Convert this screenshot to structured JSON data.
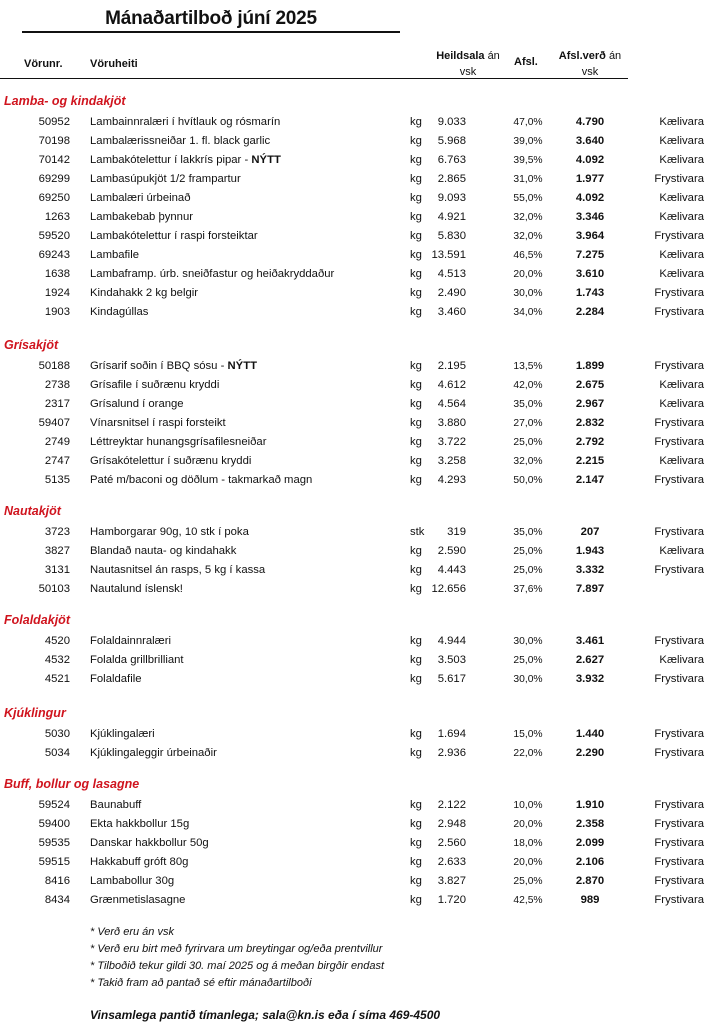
{
  "title": "Mánaðartilboð júní 2025",
  "columns": {
    "number": "Vörunr.",
    "name": "Vöruheiti",
    "price_bold": "Heildsala",
    "price_rest1": "án",
    "price_rest2": "vsk",
    "discount": "Afsl.",
    "dprice_bold": "Afsl.verð",
    "dprice_rest1": "án",
    "dprice_rest2": "vsk"
  },
  "accent_color": "#d0141e",
  "sections": [
    {
      "title": "Lamba- og kindakjöt",
      "rows": [
        {
          "no": "50952",
          "name": "Lambainnralæri í hvítlauk og rósmarín",
          "tag": "",
          "unit": "kg",
          "price": "9.033",
          "disc": "47,0%",
          "dprice": "4.790",
          "store": "Kælivara"
        },
        {
          "no": "70198",
          "name": "Lambalærissneiðar 1. fl. black garlic",
          "tag": "",
          "unit": "kg",
          "price": "5.968",
          "disc": "39,0%",
          "dprice": "3.640",
          "store": "Kælivara"
        },
        {
          "no": "70142",
          "name": "Lambakótelettur í lakkrís pipar - ",
          "tag": "NÝTT",
          "unit": "kg",
          "price": "6.763",
          "disc": "39,5%",
          "dprice": "4.092",
          "store": "Kælivara"
        },
        {
          "no": "69299",
          "name": "Lambasúpukjöt 1/2 frampartur",
          "tag": "",
          "unit": "kg",
          "price": "2.865",
          "disc": "31,0%",
          "dprice": "1.977",
          "store": "Frystivara"
        },
        {
          "no": "69250",
          "name": "Lambalæri úrbeinað",
          "tag": "",
          "unit": "kg",
          "price": "9.093",
          "disc": "55,0%",
          "dprice": "4.092",
          "store": "Kælivara"
        },
        {
          "no": "1263",
          "name": "Lambakebab þynnur",
          "tag": "",
          "unit": "kg",
          "price": "4.921",
          "disc": "32,0%",
          "dprice": "3.346",
          "store": "Kælivara"
        },
        {
          "no": "59520",
          "name": "Lambakótelettur í raspi forsteiktar",
          "tag": "",
          "unit": "kg",
          "price": "5.830",
          "disc": "32,0%",
          "dprice": "3.964",
          "store": "Frystivara"
        },
        {
          "no": "69243",
          "name": "Lambafile",
          "tag": "",
          "unit": "kg",
          "price": "13.591",
          "disc": "46,5%",
          "dprice": "7.275",
          "store": "Kælivara"
        },
        {
          "no": "1638",
          "name": "Lambaframp. úrb. sneiðfastur og heiðakryddaður",
          "tag": "",
          "unit": "kg",
          "price": "4.513",
          "disc": "20,0%",
          "dprice": "3.610",
          "store": "Kælivara"
        },
        {
          "no": "1924",
          "name": "Kindahakk 2 kg belgir",
          "tag": "",
          "unit": "kg",
          "price": "2.490",
          "disc": "30,0%",
          "dprice": "1.743",
          "store": "Frystivara"
        },
        {
          "no": "1903",
          "name": "Kindagúllas",
          "tag": "",
          "unit": "kg",
          "price": "3.460",
          "disc": "34,0%",
          "dprice": "2.284",
          "store": "Frystivara"
        }
      ]
    },
    {
      "title": "Grísakjöt",
      "rows": [
        {
          "no": "50188",
          "name": "Grísarif soðin í BBQ sósu - ",
          "tag": "NÝTT",
          "unit": "kg",
          "price": "2.195",
          "disc": "13,5%",
          "dprice": "1.899",
          "store": "Frystivara"
        },
        {
          "no": "2738",
          "name": "Grísafile í suðrænu kryddi",
          "tag": "",
          "unit": "kg",
          "price": "4.612",
          "disc": "42,0%",
          "dprice": "2.675",
          "store": "Kælivara"
        },
        {
          "no": "2317",
          "name": "Grísalund í orange",
          "tag": "",
          "unit": "kg",
          "price": "4.564",
          "disc": "35,0%",
          "dprice": "2.967",
          "store": "Kælivara"
        },
        {
          "no": "59407",
          "name": "Vínarsnitsel í raspi forsteikt",
          "tag": "",
          "unit": "kg",
          "price": "3.880",
          "disc": "27,0%",
          "dprice": "2.832",
          "store": "Frystivara"
        },
        {
          "no": "2749",
          "name": "Léttreyktar hunangsgrísafilesneiðar",
          "tag": "",
          "unit": "kg",
          "price": "3.722",
          "disc": "25,0%",
          "dprice": "2.792",
          "store": "Frystivara"
        },
        {
          "no": "2747",
          "name": "Grísakótelettur í suðrænu kryddi",
          "tag": "",
          "unit": "kg",
          "price": "3.258",
          "disc": "32,0%",
          "dprice": "2.215",
          "store": "Kælivara"
        },
        {
          "no": "5135",
          "name": "Paté m/baconi og döðlum - takmarkað magn",
          "tag": "",
          "unit": "kg",
          "price": "4.293",
          "disc": "50,0%",
          "dprice": "2.147",
          "store": "Frystivara"
        }
      ]
    },
    {
      "title": "Nautakjöt",
      "rows": [
        {
          "no": "3723",
          "name": "Hamborgarar 90g, 10 stk í poka",
          "tag": "",
          "unit": "stk",
          "price": "319",
          "disc": "35,0%",
          "dprice": "207",
          "store": "Frystivara"
        },
        {
          "no": "3827",
          "name": "Blandað nauta- og kindahakk",
          "tag": "",
          "unit": "kg",
          "price": "2.590",
          "disc": "25,0%",
          "dprice": "1.943",
          "store": "Kælivara"
        },
        {
          "no": "3131",
          "name": "Nautasnitsel án rasps, 5 kg í kassa",
          "tag": "",
          "unit": "kg",
          "price": "4.443",
          "disc": "25,0%",
          "dprice": "3.332",
          "store": "Frystivara"
        },
        {
          "no": "50103",
          "name": "Nautalund íslensk!",
          "tag": "",
          "unit": "kg",
          "price": "12.656",
          "disc": "37,6%",
          "dprice": "7.897",
          "store": ""
        }
      ]
    },
    {
      "title": "Folaldakjöt",
      "rows": [
        {
          "no": "4520",
          "name": "Folaldainnralæri",
          "tag": "",
          "unit": "kg",
          "price": "4.944",
          "disc": "30,0%",
          "dprice": "3.461",
          "store": "Frystivara"
        },
        {
          "no": "4532",
          "name": "Folalda grillbrilliant",
          "tag": "",
          "unit": "kg",
          "price": "3.503",
          "disc": "25,0%",
          "dprice": "2.627",
          "store": "Kælivara"
        },
        {
          "no": "4521",
          "name": "Folaldafile",
          "tag": "",
          "unit": "kg",
          "price": "5.617",
          "disc": "30,0%",
          "dprice": "3.932",
          "store": "Frystivara"
        }
      ]
    },
    {
      "title": "Kjúklingur",
      "rows": [
        {
          "no": "5030",
          "name": "Kjúklingalæri",
          "tag": "",
          "unit": "kg",
          "price": "1.694",
          "disc": "15,0%",
          "dprice": "1.440",
          "store": "Frystivara"
        },
        {
          "no": "5034",
          "name": "Kjúklingaleggir úrbeinaðir",
          "tag": "",
          "unit": "kg",
          "price": "2.936",
          "disc": "22,0%",
          "dprice": "2.290",
          "store": "Frystivara"
        }
      ]
    },
    {
      "title": "Buff, bollur og lasagne",
      "rows": [
        {
          "no": "59524",
          "name": "Baunabuff",
          "tag": "",
          "unit": "kg",
          "price": "2.122",
          "disc": "10,0%",
          "dprice": "1.910",
          "store": "Frystivara"
        },
        {
          "no": "59400",
          "name": "Ekta hakkbollur 15g",
          "tag": "",
          "unit": "kg",
          "price": "2.948",
          "disc": "20,0%",
          "dprice": "2.358",
          "store": "Frystivara"
        },
        {
          "no": "59535",
          "name": "Danskar hakkbollur 50g",
          "tag": "",
          "unit": "kg",
          "price": "2.560",
          "disc": "18,0%",
          "dprice": "2.099",
          "store": "Frystivara"
        },
        {
          "no": "59515",
          "name": "Hakkabuff gróft 80g",
          "tag": "",
          "unit": "kg",
          "price": "2.633",
          "disc": "20,0%",
          "dprice": "2.106",
          "store": "Frystivara"
        },
        {
          "no": "8416",
          "name": "Lambabollur 30g",
          "tag": "",
          "unit": "kg",
          "price": "3.827",
          "disc": "25,0%",
          "dprice": "2.870",
          "store": "Frystivara"
        },
        {
          "no": "8434",
          "name": "Grænmetislasagne",
          "tag": "",
          "unit": "kg",
          "price": "1.720",
          "disc": "42,5%",
          "dprice": "989",
          "store": "Frystivara"
        }
      ]
    }
  ],
  "notes": [
    "* Verð eru án vsk",
    "* Verð eru birt með fyrirvara um breytingar og/eða prentvillur",
    "* Tilboðið tekur gildi 30. maí 2025 og á meðan birgðir endast",
    "* Takið fram að pantað sé eftir mánaðartilboði"
  ],
  "contact": "Vinsamlega pantið tímanlega; sala@kn.is eða í síma 469-4500"
}
